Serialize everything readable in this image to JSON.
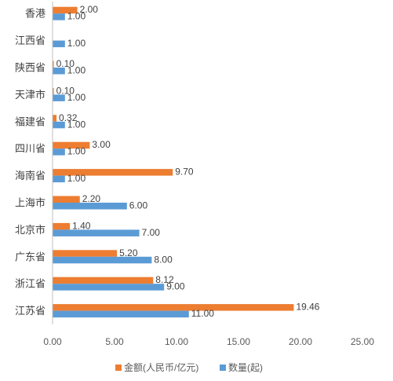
{
  "chart_data": {
    "type": "bar",
    "orientation": "horizontal",
    "categories": [
      "香港",
      "江西省",
      "陕西省",
      "天津市",
      "福建省",
      "四川省",
      "海南省",
      "上海市",
      "北京市",
      "广东省",
      "浙江省",
      "江苏省"
    ],
    "series": [
      {
        "name": "金额(人民币/亿元)",
        "color": "#ED7D31",
        "values": [
          2.0,
          null,
          0.1,
          0.1,
          0.32,
          3.0,
          9.7,
          2.2,
          1.4,
          5.2,
          8.12,
          19.46
        ],
        "labels": [
          "2.00",
          "",
          "0.10",
          "0.10",
          "0.32",
          "3.00",
          "9.70",
          "2.20",
          "1.40",
          "5.20",
          "8.12",
          "19.46"
        ]
      },
      {
        "name": "数量(起)",
        "color": "#5B9BD5",
        "values": [
          1,
          1,
          1,
          1,
          1,
          1,
          1,
          6,
          7,
          8,
          9,
          11
        ],
        "labels": [
          "1.00",
          "1.00",
          "1.00",
          "1.00",
          "1.00",
          "1.00",
          "1.00",
          "6.00",
          "7.00",
          "8.00",
          "9.00",
          "11.00"
        ]
      }
    ],
    "xlim": [
      0,
      25
    ],
    "xticks": [
      "0.00",
      "5.00",
      "10.00",
      "15.00",
      "20.00",
      "25.00"
    ],
    "grid": false,
    "legend": "bottom"
  }
}
